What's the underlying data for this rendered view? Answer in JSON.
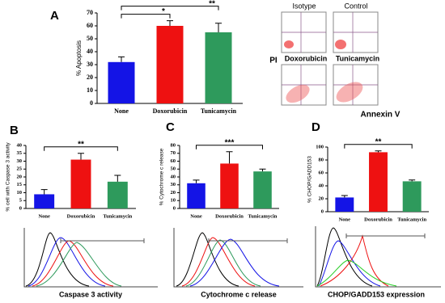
{
  "chart_data": [
    {
      "type": "bar",
      "panel": "A",
      "ylabel": "% Apoptosis",
      "categories": [
        "None",
        "Doxorubicin",
        "Tunicamycin"
      ],
      "values": [
        32,
        60,
        55
      ],
      "errors": [
        4,
        4,
        7
      ],
      "colors": [
        "#1414e6",
        "#ee1111",
        "#2e9a5c"
      ],
      "ylim": [
        0,
        70
      ],
      "yticks": [
        0,
        10,
        20,
        30,
        40,
        50,
        60,
        70
      ],
      "significance": [
        {
          "pair": [
            "None",
            "Doxorubicin"
          ],
          "label": "*"
        },
        {
          "pair": [
            "None",
            "Tunicamycin"
          ],
          "label": "**"
        }
      ]
    },
    {
      "type": "bar",
      "panel": "B",
      "ylabel": "% cell with Caspase 3 activity",
      "caption": "Caspase 3 activity",
      "categories": [
        "None",
        "Doxorubicin",
        "Tunicamycin"
      ],
      "values": [
        9,
        31,
        17
      ],
      "errors": [
        3,
        4,
        4
      ],
      "colors": [
        "#1414e6",
        "#ee1111",
        "#2e9a5c"
      ],
      "ylim": [
        0,
        40
      ],
      "yticks": [
        0,
        5,
        10,
        15,
        20,
        25,
        30,
        35,
        40
      ],
      "significance": [
        {
          "pair": [
            "None",
            "Tunicamycin"
          ],
          "label": "**"
        }
      ]
    },
    {
      "type": "bar",
      "panel": "C",
      "ylabel": "% Cytochrome c release",
      "caption": "Cytochrome c release",
      "categories": [
        "None",
        "Doxorubicin",
        "Tunicamycin"
      ],
      "values": [
        32,
        57,
        47
      ],
      "errors": [
        4,
        15,
        3
      ],
      "colors": [
        "#1414e6",
        "#ee1111",
        "#2e9a5c"
      ],
      "ylim": [
        0,
        80
      ],
      "yticks": [
        0,
        10,
        20,
        30,
        40,
        50,
        60,
        70,
        80
      ],
      "significance": [
        {
          "pair": [
            "None",
            "Tunicamycin"
          ],
          "label": "***"
        }
      ]
    },
    {
      "type": "bar",
      "panel": "D",
      "ylabel": "% CHOP/GADD153",
      "caption": "CHOP/GADD153 expression",
      "categories": [
        "None",
        "Doxorubicin",
        "Tunicamycin"
      ],
      "values": [
        22,
        92,
        47
      ],
      "errors": [
        3,
        2,
        2
      ],
      "colors": [
        "#1414e6",
        "#ee1111",
        "#2e9a5c"
      ],
      "ylim": [
        0,
        100
      ],
      "yticks": [
        0,
        20,
        40,
        60,
        80,
        100
      ],
      "significance": [
        {
          "pair": [
            "None",
            "Tunicamycin"
          ],
          "label": "**"
        }
      ]
    }
  ],
  "flow_cytometry": {
    "labels": [
      "Isotype",
      "Control",
      "Doxorubicin",
      "Tunicamycin"
    ],
    "y_axis": "PI",
    "x_axis": "Annexin V"
  }
}
